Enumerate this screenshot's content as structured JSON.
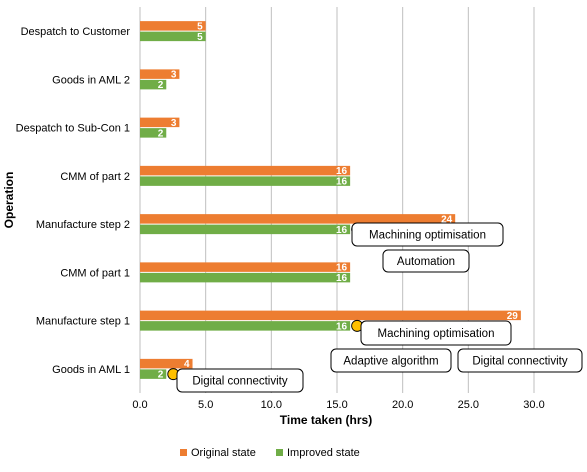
{
  "chart_data": {
    "type": "bar",
    "orientation": "horizontal",
    "categories": [
      "Despatch to Customer",
      "Goods in AML 2",
      "Despatch to Sub-Con 1",
      "CMM of part 2",
      "Manufacture step 2",
      "CMM of part 1",
      "Manufacture step 1",
      "Goods in AML 1"
    ],
    "series": [
      {
        "name": "Original state",
        "color": "#ED7D31",
        "values": [
          5,
          3,
          3,
          16,
          24,
          16,
          29,
          4
        ]
      },
      {
        "name": "Improved state",
        "color": "#70AD47",
        "values": [
          5,
          2,
          2,
          16,
          16,
          16,
          16,
          2
        ]
      }
    ],
    "xlabel": "Time taken (hrs)",
    "ylabel": "Operation",
    "xlim": [
      0,
      30
    ],
    "xticks": [
      "0.0",
      "5.0",
      "10.0",
      "15.0",
      "20.0",
      "25.0",
      "30.0"
    ],
    "grid": true,
    "legend_position": "bottom",
    "marker_color": "#FFC000",
    "annotations": [
      {
        "text": "Machining optimisation",
        "category": "Manufacture step 2",
        "marker_value": 16
      },
      {
        "text": "Automation",
        "category": "CMM of part 1"
      },
      {
        "text": "Machining optimisation",
        "category": "Manufacture step 1",
        "marker_value": 16
      },
      {
        "text": "Adaptive algorithm",
        "category": "Manufacture step 1"
      },
      {
        "text": "Digital connectivity",
        "category": "Manufacture step 1"
      },
      {
        "text": "Digital connectivity",
        "category": "Goods in AML 1",
        "marker_value": 2
      }
    ]
  }
}
